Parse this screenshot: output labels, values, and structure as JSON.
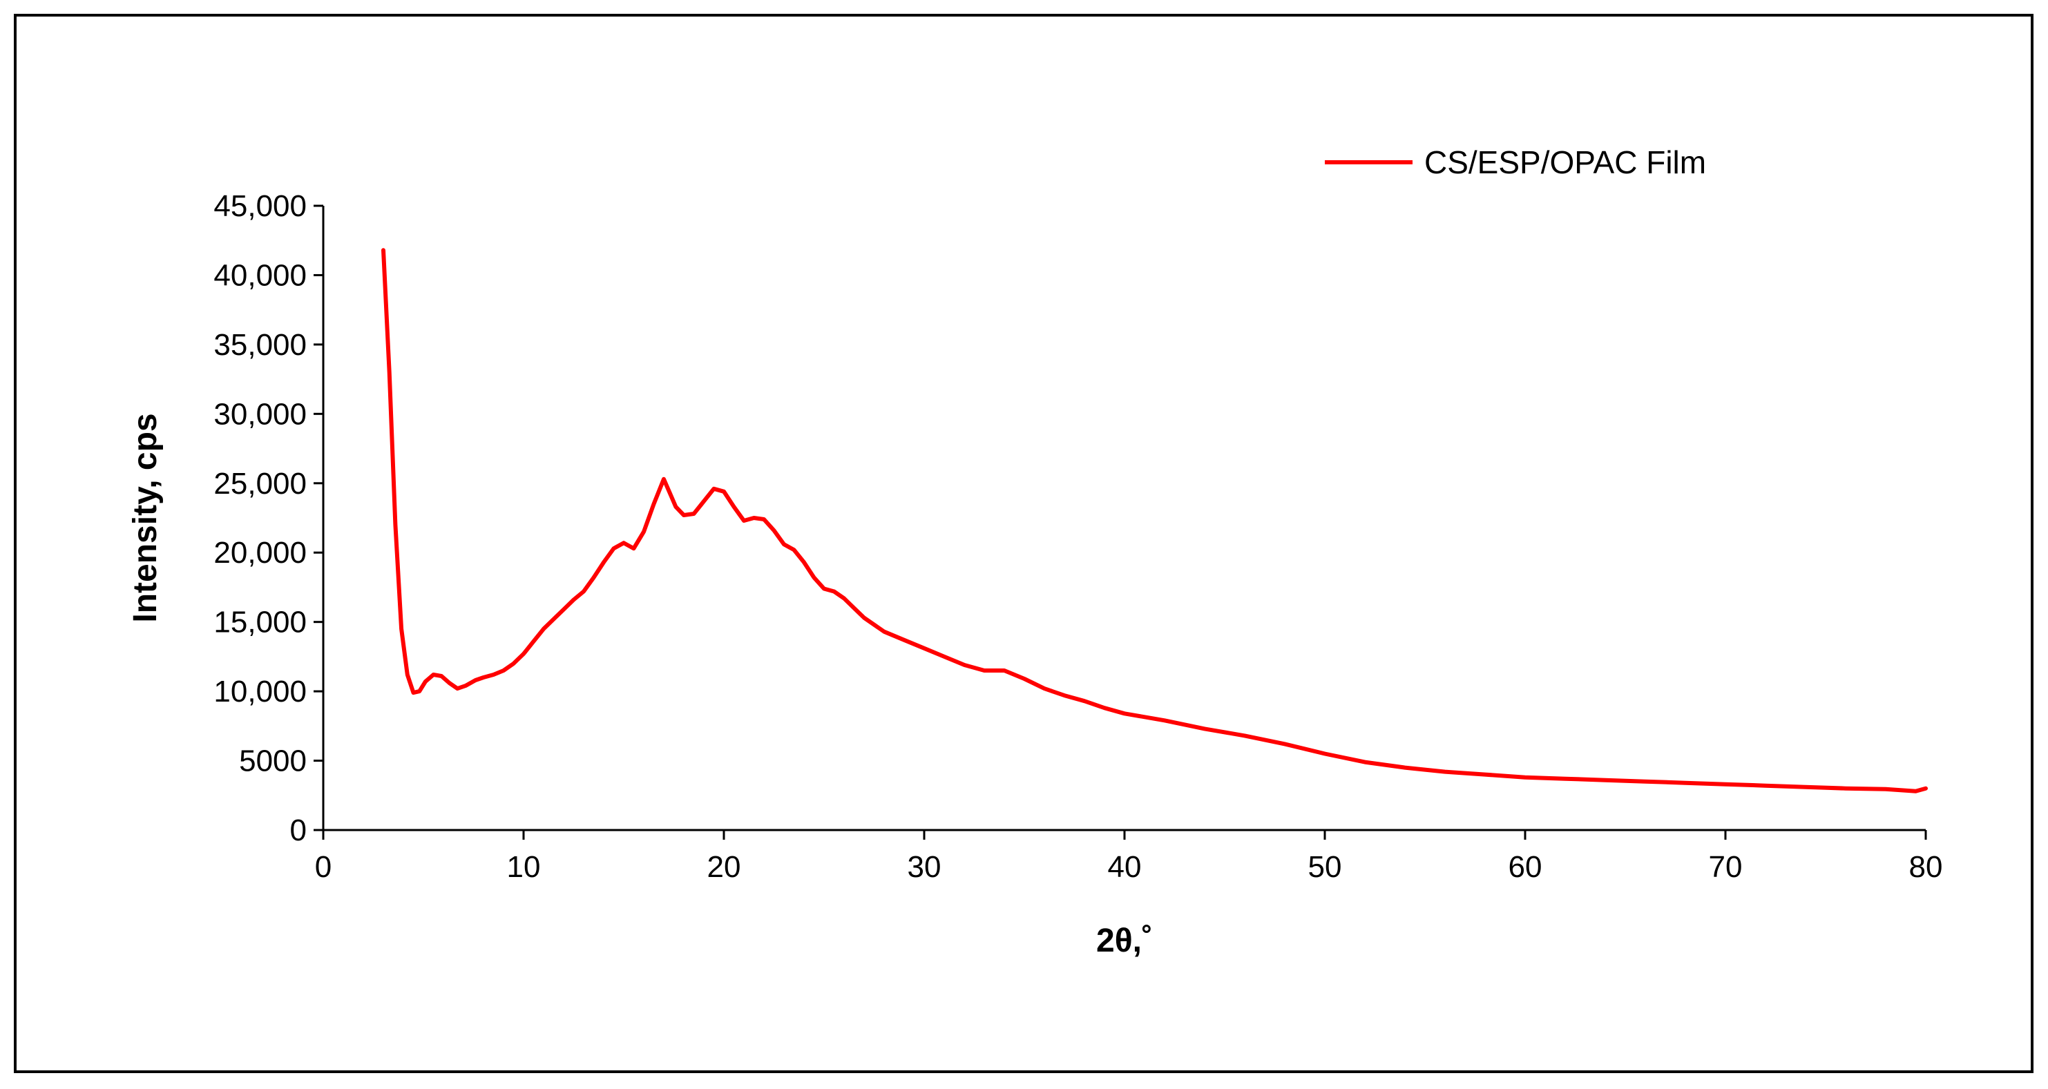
{
  "chart_data": {
    "type": "line",
    "xlabel": "2θ,˚",
    "ylabel": "Intensity, cps",
    "xlim": [
      0,
      80
    ],
    "ylim": [
      0,
      45000
    ],
    "x_ticks": [
      0,
      10,
      20,
      30,
      40,
      50,
      60,
      70,
      80
    ],
    "x_tick_labels": [
      "0",
      "10",
      "20",
      "30",
      "40",
      "50",
      "60",
      "70",
      "80"
    ],
    "y_ticks": [
      0,
      5000,
      10000,
      15000,
      20000,
      25000,
      30000,
      35000,
      40000,
      45000
    ],
    "y_tick_labels": [
      "0",
      "5000",
      "10,000",
      "15,000",
      "20,000",
      "25,000",
      "30,000",
      "35,000",
      "40,000",
      "45,000"
    ],
    "grid": false,
    "legend_position": "top-right",
    "series": [
      {
        "name": "CS/ESP/OPAC Film",
        "color": "#ff0000",
        "x": [
          3.0,
          3.3,
          3.6,
          3.9,
          4.2,
          4.5,
          4.8,
          5.1,
          5.5,
          5.9,
          6.3,
          6.7,
          7.1,
          7.6,
          8.0,
          8.5,
          9.0,
          9.5,
          10.0,
          10.5,
          11.0,
          11.5,
          12.0,
          12.5,
          13.0,
          13.5,
          14.0,
          14.5,
          15.0,
          15.5,
          16.0,
          16.5,
          17.0,
          17.3,
          17.6,
          18.0,
          18.5,
          19.0,
          19.5,
          20.0,
          20.5,
          21.0,
          21.5,
          22.0,
          22.5,
          23.0,
          23.5,
          24.0,
          24.5,
          25.0,
          25.5,
          26.0,
          26.5,
          27.0,
          28.0,
          29.0,
          30.0,
          31.0,
          32.0,
          33.0,
          34.0,
          35.0,
          36.0,
          37.0,
          38.0,
          39.0,
          40.0,
          42.0,
          44.0,
          46.0,
          48.0,
          50.0,
          52.0,
          54.0,
          56.0,
          58.0,
          60.0,
          62.0,
          64.0,
          66.0,
          68.0,
          70.0,
          72.0,
          74.0,
          76.0,
          78.0,
          79.5,
          80.0
        ],
        "y": [
          41800,
          33000,
          22000,
          14500,
          11200,
          9900,
          10000,
          10700,
          11200,
          11100,
          10600,
          10200,
          10400,
          10800,
          11000,
          11200,
          11500,
          12000,
          12700,
          13600,
          14500,
          15200,
          15900,
          16600,
          17200,
          18200,
          19300,
          20300,
          20700,
          20300,
          21500,
          23500,
          25300,
          24300,
          23300,
          22700,
          22800,
          23700,
          24600,
          24400,
          23300,
          22300,
          22500,
          22400,
          21600,
          20600,
          20200,
          19300,
          18200,
          17400,
          17200,
          16700,
          16000,
          15300,
          14300,
          13700,
          13100,
          12500,
          11900,
          11500,
          11500,
          10900,
          10200,
          9700,
          9300,
          8800,
          8400,
          7900,
          7300,
          6800,
          6200,
          5500,
          4900,
          4500,
          4200,
          4000,
          3800,
          3700,
          3600,
          3500,
          3400,
          3300,
          3200,
          3100,
          3000,
          2950,
          2800,
          3000
        ]
      }
    ]
  }
}
